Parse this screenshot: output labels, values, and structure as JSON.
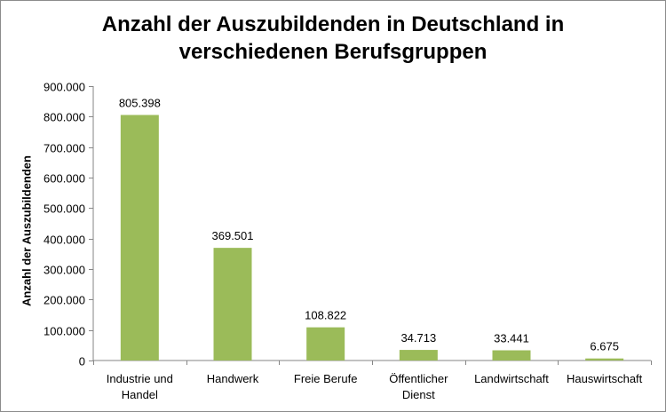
{
  "chart_data": {
    "type": "bar",
    "title": "Anzahl der Auszubildenden in Deutschland in verschiedenen Berufsgruppen",
    "title_lines": [
      "Anzahl der Auszubildenden in Deutschland in",
      "verschiedenen Berufsgruppen"
    ],
    "xlabel": "",
    "ylabel": "Anzahl der Auszubildenden",
    "categories": [
      "Industrie und Handel",
      "Handwerk",
      "Freie Berufe",
      "Öffentlicher Dienst",
      "Landwirtschaft",
      "Hauswirtschaft"
    ],
    "category_lines": [
      [
        "Industrie und",
        "Handel"
      ],
      [
        "Handwerk"
      ],
      [
        "Freie Berufe"
      ],
      [
        "Öffentlicher",
        "Dienst"
      ],
      [
        "Landwirtschaft"
      ],
      [
        "Hauswirtschaft"
      ]
    ],
    "values": [
      805398,
      369501,
      108822,
      34713,
      33441,
      6675
    ],
    "data_labels": [
      "805.398",
      "369.501",
      "108.822",
      "34.713",
      "33.441",
      "6.675"
    ],
    "ylim": [
      0,
      900000
    ],
    "yticks": [
      0,
      100000,
      200000,
      300000,
      400000,
      500000,
      600000,
      700000,
      800000,
      900000
    ],
    "ytick_labels": [
      "0",
      "100.000",
      "200.000",
      "300.000",
      "400.000",
      "500.000",
      "600.000",
      "700.000",
      "800.000",
      "900.000"
    ],
    "grid": false,
    "legend": "none",
    "bar_color": "#9bbb59"
  }
}
